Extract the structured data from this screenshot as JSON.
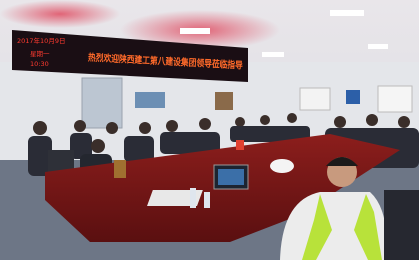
{
  "sign": {
    "date": "2017年10月9日",
    "weekday": "星期一",
    "time": "10:30",
    "banner": "热烈欢迎陕西建工第八建设集团领导莅临指导"
  }
}
